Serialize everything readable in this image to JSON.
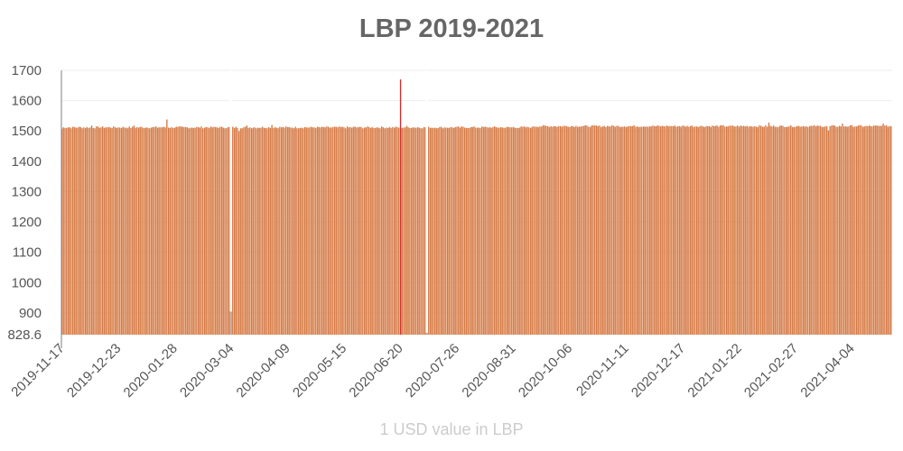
{
  "chart_data": {
    "type": "bar",
    "title": "LBP 2019-2021",
    "xlabel": "1 USD value in LBP",
    "ylabel": "",
    "ylim": [
      828.6,
      1700
    ],
    "yticks": [
      828.6,
      900,
      1000,
      1100,
      1200,
      1300,
      1400,
      1500,
      1600,
      1700
    ],
    "xtick_labels": [
      "2019-11-17",
      "2019-12-23",
      "2020-01-28",
      "2020-03-04",
      "2020-04-09",
      "2020-05-15",
      "2020-06-20",
      "2020-07-26",
      "2020-08-31",
      "2020-10-06",
      "2020-11-11",
      "2020-12-17",
      "2021-01-22",
      "2021-02-27",
      "2021-04-04"
    ],
    "start_date": "2019-11-17",
    "days": 530,
    "base_value": 1512,
    "bar_color": "#e0915f",
    "bar_border_color": "#c8602a",
    "max_color": "#cc3333",
    "min_color": "#999999",
    "grid": true,
    "legend": "none",
    "notable_points": [
      {
        "date": "2019-11-17",
        "value": 1508
      },
      {
        "date": "2019-12-06",
        "value": 1518
      },
      {
        "date": "2020-01-02",
        "value": 1518
      },
      {
        "date": "2020-01-23",
        "value": 1538
      },
      {
        "date": "2020-03-04",
        "value": 905,
        "note": "low"
      },
      {
        "date": "2020-03-09",
        "value": 1500
      },
      {
        "date": "2020-03-14",
        "value": 1518
      },
      {
        "date": "2020-03-30",
        "value": 1520
      },
      {
        "date": "2020-06-20",
        "value": 1670,
        "note": "max"
      },
      {
        "date": "2020-06-24",
        "value": 1517
      },
      {
        "date": "2020-07-07",
        "value": 835,
        "note": "min"
      },
      {
        "date": "2021-02-10",
        "value": 1528
      },
      {
        "date": "2021-03-20",
        "value": 1502
      },
      {
        "date": "2021-03-29",
        "value": 1525
      },
      {
        "date": "2021-04-24",
        "value": 1525
      }
    ]
  }
}
